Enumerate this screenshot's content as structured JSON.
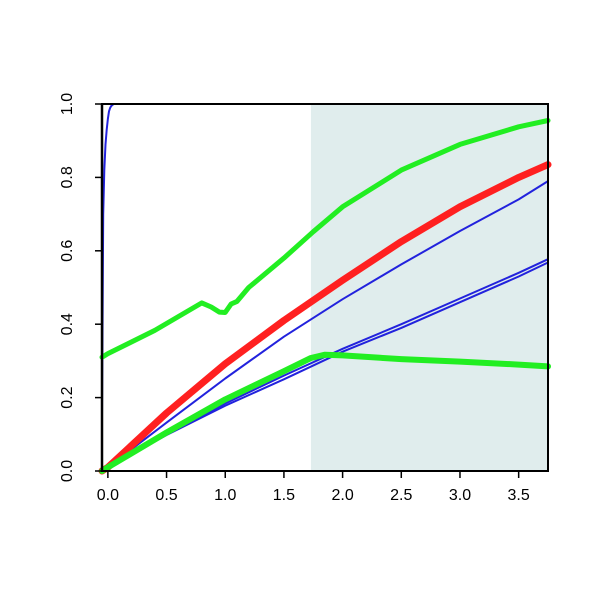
{
  "chart_data": {
    "type": "line",
    "title": "",
    "xlabel": "",
    "ylabel": "",
    "xlim": [
      -0.05,
      3.75
    ],
    "ylim": [
      0.0,
      1.0
    ],
    "x_ticks": [
      {
        "value": 0.0,
        "label": "0.0"
      },
      {
        "value": 0.5,
        "label": "0.5"
      },
      {
        "value": 1.0,
        "label": "1.0"
      },
      {
        "value": 1.5,
        "label": "1.5"
      },
      {
        "value": 2.0,
        "label": "2.0"
      },
      {
        "value": 2.5,
        "label": "2.5"
      },
      {
        "value": 3.0,
        "label": "3.0"
      },
      {
        "value": 3.5,
        "label": "3.5"
      }
    ],
    "y_ticks": [
      {
        "value": 0.0,
        "label": "0.0"
      },
      {
        "value": 0.2,
        "label": "0.2"
      },
      {
        "value": 0.4,
        "label": "0.4"
      },
      {
        "value": 0.6,
        "label": "0.6"
      },
      {
        "value": 0.8,
        "label": "0.8"
      },
      {
        "value": 1.0,
        "label": "1.0"
      }
    ],
    "grid": false,
    "legend": "none",
    "shaded_region": {
      "x_start": 1.73,
      "x_end": 3.75,
      "color": "#e0eded"
    },
    "colors": {
      "red": "#ff2020",
      "green": "#22ee22",
      "blue": "#2222dd",
      "axis": "#000000"
    },
    "series": [
      {
        "color": "#2222dd",
        "width": 2,
        "x": [
          -0.05,
          -0.04,
          -0.03,
          -0.02,
          -0.01,
          0.0,
          0.01,
          0.02,
          0.03,
          0.05,
          0.08,
          0.12,
          0.5,
          1.0,
          2.0,
          3.0,
          3.75
        ],
        "y": [
          0.15,
          0.7,
          0.82,
          0.89,
          0.93,
          0.96,
          0.98,
          0.99,
          0.995,
          1.0,
          1.0,
          1.0,
          1.0,
          1.0,
          1.0,
          1.0,
          1.0
        ]
      },
      {
        "color": "#2222dd",
        "width": 2,
        "x": [
          -0.05,
          0.0,
          0.5,
          1.0,
          1.5,
          2.0,
          2.5,
          3.0,
          3.5,
          3.75
        ],
        "y": [
          0.0,
          0.01,
          0.132,
          0.252,
          0.366,
          0.468,
          0.563,
          0.654,
          0.74,
          0.79
        ]
      },
      {
        "color": "#2222dd",
        "width": 2,
        "x": [
          -0.05,
          0.0,
          0.5,
          1.0,
          1.5,
          2.0,
          2.5,
          3.0,
          3.5,
          3.75
        ],
        "y": [
          0.0,
          0.01,
          0.1,
          0.184,
          0.26,
          0.333,
          0.4,
          0.47,
          0.54,
          0.577
        ]
      },
      {
        "color": "#2222dd",
        "width": 2,
        "x": [
          -0.05,
          0.0,
          0.5,
          1.0,
          1.5,
          2.0,
          2.5,
          3.0,
          3.5,
          3.75
        ],
        "y": [
          0.0,
          0.01,
          0.098,
          0.178,
          0.25,
          0.325,
          0.39,
          0.46,
          0.53,
          0.568
        ]
      },
      {
        "color": "#ff2020",
        "width": 7,
        "x": [
          -0.05,
          0.0,
          0.5,
          1.0,
          1.5,
          2.0,
          2.5,
          3.0,
          3.5,
          3.75
        ],
        "y": [
          0.0,
          0.01,
          0.158,
          0.292,
          0.41,
          0.52,
          0.625,
          0.72,
          0.8,
          0.835
        ]
      },
      {
        "color": "#22ee22",
        "width": 5,
        "x": [
          -0.05,
          0.0,
          0.4,
          0.8,
          0.88,
          0.95,
          1.0,
          1.05,
          1.1,
          1.2,
          1.5,
          1.75,
          2.0,
          2.5,
          3.0,
          3.5,
          3.75
        ],
        "y": [
          0.31,
          0.32,
          0.383,
          0.458,
          0.447,
          0.433,
          0.432,
          0.455,
          0.462,
          0.5,
          0.58,
          0.652,
          0.72,
          0.82,
          0.89,
          0.938,
          0.955
        ]
      },
      {
        "color": "#22ee22",
        "width": 6,
        "x": [
          -0.05,
          0.0,
          0.5,
          1.0,
          1.5,
          1.73,
          1.85,
          2.0,
          2.5,
          3.0,
          3.5,
          3.75
        ],
        "y": [
          0.0,
          0.01,
          0.105,
          0.195,
          0.272,
          0.308,
          0.317,
          0.315,
          0.305,
          0.298,
          0.29,
          0.285
        ]
      }
    ]
  }
}
